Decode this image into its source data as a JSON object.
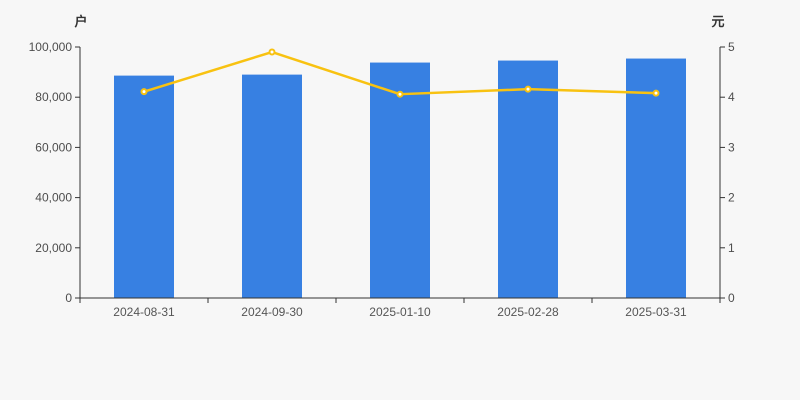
{
  "chart_data": {
    "type": "combo",
    "categories": [
      "2024-08-31",
      "2024-09-30",
      "2025-01-10",
      "2025-02-28",
      "2025-03-31"
    ],
    "series": [
      {
        "name": "bar-series",
        "type": "bar",
        "axis": "left",
        "values": [
          88600,
          89000,
          93800,
          94600,
          95400
        ]
      },
      {
        "name": "line-series",
        "type": "line",
        "axis": "right",
        "values": [
          4.11,
          4.9,
          4.06,
          4.16,
          4.08
        ]
      }
    ],
    "left_axis": {
      "unit": "户",
      "min": 0,
      "max": 100000,
      "ticks": [
        "0",
        "20,000",
        "40,000",
        "60,000",
        "80,000",
        "100,000"
      ]
    },
    "right_axis": {
      "unit": "元",
      "min": 0,
      "max": 5,
      "ticks": [
        "0",
        "1",
        "2",
        "3",
        "4",
        "5"
      ]
    },
    "title": "",
    "legend": "none",
    "grid": "off",
    "colors": {
      "background": "#f7f7f7",
      "bar": "#3780e2",
      "line": "#f8c211",
      "marker_fill": "#ffffff",
      "axis_line": "#333333",
      "tick_text": "#4d4d4d"
    }
  }
}
